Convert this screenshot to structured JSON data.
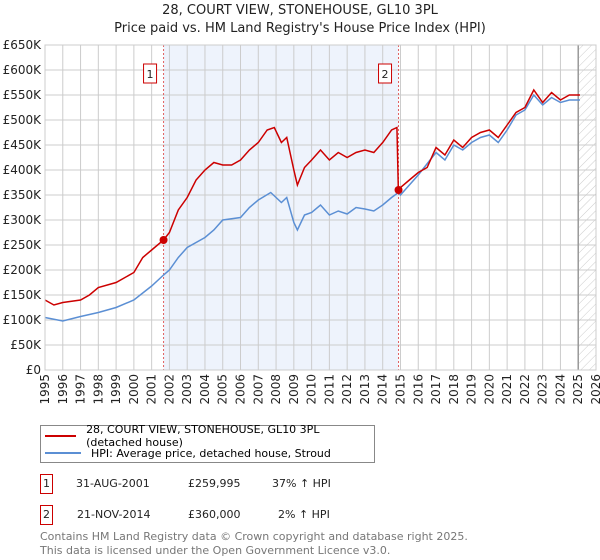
{
  "chart_data": {
    "type": "line",
    "title": "28, COURT VIEW, STONEHOUSE, GL10 3PL",
    "subtitle": "Price paid vs. HM Land Registry's House Price Index (HPI)",
    "xlim": [
      1995,
      2026
    ],
    "ylim": [
      0,
      650000
    ],
    "x_ticks": [
      "1995",
      "1996",
      "1997",
      "1998",
      "1999",
      "2000",
      "2001",
      "2002",
      "2003",
      "2004",
      "2005",
      "2006",
      "2007",
      "2008",
      "2009",
      "2010",
      "2011",
      "2012",
      "2013",
      "2014",
      "2015",
      "2016",
      "2017",
      "2018",
      "2019",
      "2020",
      "2021",
      "2022",
      "2023",
      "2024",
      "2025",
      "2026"
    ],
    "y_ticks": [
      "£0",
      "£50K",
      "£100K",
      "£150K",
      "£200K",
      "£250K",
      "£300K",
      "£350K",
      "£400K",
      "£450K",
      "£500K",
      "£550K",
      "£600K",
      "£650K"
    ],
    "grid": true,
    "series": [
      {
        "name": "28, COURT VIEW, STONEHOUSE, GL10 3PL (detached house)",
        "color": "#cc0000",
        "x": [
          1995,
          1995.5,
          1996,
          1997,
          1997.5,
          1998,
          1999,
          2000,
          2000.5,
          2001,
          2001.67,
          2002,
          2002.5,
          2003,
          2003.5,
          2004,
          2004.5,
          2005,
          2005.5,
          2006,
          2006.5,
          2007,
          2007.5,
          2007.9,
          2008.3,
          2008.6,
          2009,
          2009.2,
          2009.6,
          2010,
          2010.5,
          2011,
          2011.5,
          2012,
          2012.5,
          2013,
          2013.5,
          2014,
          2014.5,
          2014.8,
          2014.88,
          2015,
          2015.5,
          2016,
          2016.5,
          2017,
          2017.5,
          2018,
          2018.5,
          2019,
          2019.5,
          2020,
          2020.5,
          2021,
          2021.5,
          2022,
          2022.5,
          2023,
          2023.5,
          2024,
          2024.5,
          2025.1
        ],
        "y": [
          140000,
          130000,
          135000,
          140000,
          150000,
          165000,
          175000,
          195000,
          225000,
          240000,
          259995,
          275000,
          320000,
          345000,
          380000,
          400000,
          415000,
          410000,
          410000,
          420000,
          440000,
          455000,
          480000,
          485000,
          455000,
          465000,
          400000,
          370000,
          405000,
          420000,
          440000,
          420000,
          435000,
          425000,
          435000,
          440000,
          435000,
          455000,
          480000,
          485000,
          360000,
          365000,
          380000,
          395000,
          405000,
          445000,
          430000,
          460000,
          445000,
          465000,
          475000,
          480000,
          465000,
          490000,
          515000,
          525000,
          560000,
          535000,
          555000,
          540000,
          550000,
          550000
        ]
      },
      {
        "name": "HPI: Average price, detached house, Stroud",
        "color": "#5b8fd4",
        "x": [
          1995,
          1996,
          1997,
          1998,
          1999,
          2000,
          2001,
          2001.67,
          2002,
          2002.5,
          2003,
          2004,
          2004.5,
          2005,
          2006,
          2006.5,
          2007,
          2007.7,
          2008.3,
          2008.6,
          2009,
          2009.2,
          2009.6,
          2010,
          2010.5,
          2011,
          2011.5,
          2012,
          2012.5,
          2013,
          2013.5,
          2014,
          2014.5,
          2014.88,
          2015,
          2016,
          2017,
          2017.5,
          2018,
          2018.5,
          2019,
          2019.5,
          2020,
          2020.5,
          2021,
          2021.5,
          2022,
          2022.5,
          2023,
          2023.5,
          2024,
          2024.5,
          2025.1
        ],
        "y": [
          105000,
          98000,
          107000,
          115000,
          125000,
          140000,
          168000,
          190000,
          200000,
          225000,
          245000,
          265000,
          280000,
          300000,
          305000,
          325000,
          340000,
          355000,
          335000,
          345000,
          295000,
          280000,
          310000,
          315000,
          330000,
          310000,
          318000,
          312000,
          325000,
          322000,
          318000,
          330000,
          345000,
          355000,
          350000,
          390000,
          435000,
          420000,
          450000,
          440000,
          455000,
          465000,
          470000,
          455000,
          480000,
          510000,
          520000,
          550000,
          530000,
          545000,
          535000,
          540000,
          540000
        ]
      }
    ],
    "sales": [
      {
        "label": "1",
        "x": 2001.67,
        "price": 259995,
        "date": "31-AUG-2001",
        "price_text": "£259,995",
        "hpi_text": "37% ↑ HPI"
      },
      {
        "label": "2",
        "x": 2014.89,
        "price": 360000,
        "date": "21-NOV-2014",
        "price_text": "£360,000",
        "hpi_text": "2% ↑ HPI"
      }
    ],
    "forecast_start": 2025.0,
    "legend": "below"
  },
  "footer": {
    "line1": "Contains HM Land Registry data © Crown copyright and database right 2025.",
    "line2": "This data is licensed under the Open Government Licence v3.0."
  }
}
